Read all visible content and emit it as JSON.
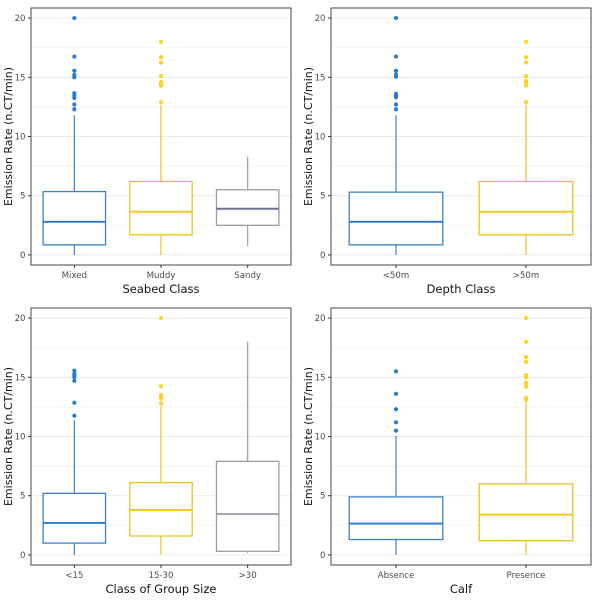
{
  "page": {
    "background": "#ffffff"
  },
  "axis_style": {
    "border_color": "#474747",
    "tick_color": "#333333",
    "tick_label_color": "#4d4d4d",
    "title_color": "#141414",
    "grid_major": "#e9e9e9",
    "grid_minor": "#f4f4f4"
  },
  "chart_data": [
    {
      "type": "box",
      "name": "seabed-class",
      "xlabel": "Seabed Class",
      "ylabel": "Emission Rate (n.CT/min)",
      "ylim": [
        0,
        20
      ],
      "yticks": [
        0,
        5,
        10,
        15,
        20
      ],
      "yminor": [
        2.5,
        7.5,
        12.5,
        17.5
      ],
      "categories": [
        "Mixed",
        "Muddy",
        "Sandy"
      ],
      "boxes": [
        {
          "category": "Mixed",
          "color": "#3d82c8",
          "point_color": "#2a7cd1",
          "median_color": "#2a7cd1",
          "whisker_min": 0.0,
          "q1": 0.85,
          "median": 2.8,
          "q3": 5.35,
          "whisker_max": 11.8,
          "outliers": [
            12.3,
            12.7,
            13.25,
            13.45,
            13.65,
            15.0,
            15.2,
            15.55,
            16.75,
            20.0
          ]
        },
        {
          "category": "Muddy",
          "color": "#edc120",
          "point_color": "#ffd21f",
          "median_color": "#f5c713",
          "whisker_min": 0.0,
          "q1": 1.7,
          "median": 3.65,
          "q3": 6.2,
          "whisker_max": 12.65,
          "outliers": [
            12.9,
            14.3,
            14.45,
            14.6,
            15.1,
            16.25,
            16.7,
            18.0
          ]
        },
        {
          "category": "Sandy",
          "color": "#9c9ca1",
          "point_color": "#9c9ca1",
          "median_color": "#6b7191",
          "whisker_min": 0.75,
          "q1": 2.5,
          "median": 3.9,
          "q3": 5.5,
          "whisker_max": 8.3,
          "outliers": []
        }
      ]
    },
    {
      "type": "box",
      "name": "depth-class",
      "xlabel": "Depth Class",
      "ylabel": "Emission Rate (n.CT/min)",
      "ylim": [
        0,
        20
      ],
      "yticks": [
        0,
        5,
        10,
        15,
        20
      ],
      "yminor": [
        2.5,
        7.5,
        12.5,
        17.5
      ],
      "categories": [
        "<50m",
        ">50m"
      ],
      "boxes": [
        {
          "category": "<50m",
          "color": "#3d82c8",
          "point_color": "#2a7cd1",
          "median_color": "#2a7cd1",
          "whisker_min": 0.0,
          "q1": 0.85,
          "median": 2.8,
          "q3": 5.3,
          "whisker_max": 11.8,
          "outliers": [
            12.3,
            12.7,
            13.3,
            13.45,
            13.6,
            15.05,
            15.25,
            15.55,
            16.75,
            20.0
          ]
        },
        {
          "category": ">50m",
          "color": "#edc120",
          "point_color": "#ffd21f",
          "median_color": "#f5c713",
          "whisker_min": 0.0,
          "q1": 1.7,
          "median": 3.65,
          "q3": 6.2,
          "whisker_max": 12.65,
          "outliers": [
            12.9,
            14.3,
            14.4,
            14.55,
            14.7,
            15.1,
            16.25,
            16.7,
            18.0
          ]
        }
      ]
    },
    {
      "type": "box",
      "name": "group-size",
      "xlabel": "Class of Group Size",
      "ylabel": "Emission Rate (n.CT/min)",
      "ylim": [
        0,
        20
      ],
      "yticks": [
        0,
        5,
        10,
        15,
        20
      ],
      "yminor": [
        2.5,
        7.5,
        12.5,
        17.5
      ],
      "categories": [
        "<15",
        "15-30",
        ">30"
      ],
      "boxes": [
        {
          "category": "<15",
          "color": "#3d82c8",
          "point_color": "#2a7cd1",
          "median_color": "#2a7cd1",
          "whisker_min": 0.0,
          "q1": 1.0,
          "median": 2.7,
          "q3": 5.2,
          "whisker_max": 11.4,
          "outliers": [
            11.75,
            12.85,
            14.7,
            15.0,
            15.15,
            15.3,
            15.55
          ]
        },
        {
          "category": "15-30",
          "color": "#edc120",
          "point_color": "#ffd21f",
          "median_color": "#f5c713",
          "whisker_min": 0.05,
          "q1": 1.6,
          "median": 3.8,
          "q3": 6.1,
          "whisker_max": 12.55,
          "outliers": [
            12.8,
            13.2,
            13.35,
            13.5,
            14.25,
            20.0
          ]
        },
        {
          "category": ">30",
          "color": "#9c9ca1",
          "point_color": "#9c9ca1",
          "median_color": "#9da1ac",
          "whisker_min": 0.15,
          "q1": 0.3,
          "median": 3.45,
          "q3": 7.9,
          "whisker_max": 18.0,
          "outliers": []
        }
      ]
    },
    {
      "type": "box",
      "name": "calf",
      "xlabel": "Calf",
      "ylabel": "Emission Rate (n.CT/min)",
      "ylim": [
        0,
        20
      ],
      "yticks": [
        0,
        5,
        10,
        15,
        20
      ],
      "yminor": [
        2.5,
        7.5,
        12.5,
        17.5
      ],
      "categories": [
        "Absence",
        "Presence"
      ],
      "boxes": [
        {
          "category": "Absence",
          "color": "#3d82c8",
          "point_color": "#2a7cd1",
          "median_color": "#2a7cd1",
          "whisker_min": 0.0,
          "q1": 1.3,
          "median": 2.65,
          "q3": 4.9,
          "whisker_max": 10.05,
          "outliers": [
            10.5,
            11.2,
            12.3,
            13.6,
            15.5
          ]
        },
        {
          "category": "Presence",
          "color": "#edc120",
          "point_color": "#ffd21f",
          "median_color": "#f5c713",
          "whisker_min": 0.0,
          "q1": 1.2,
          "median": 3.4,
          "q3": 6.0,
          "whisker_max": 12.9,
          "outliers": [
            13.1,
            13.25,
            14.2,
            14.4,
            14.55,
            15.0,
            15.2,
            16.3,
            16.7,
            18.0,
            20.0
          ]
        }
      ]
    }
  ]
}
